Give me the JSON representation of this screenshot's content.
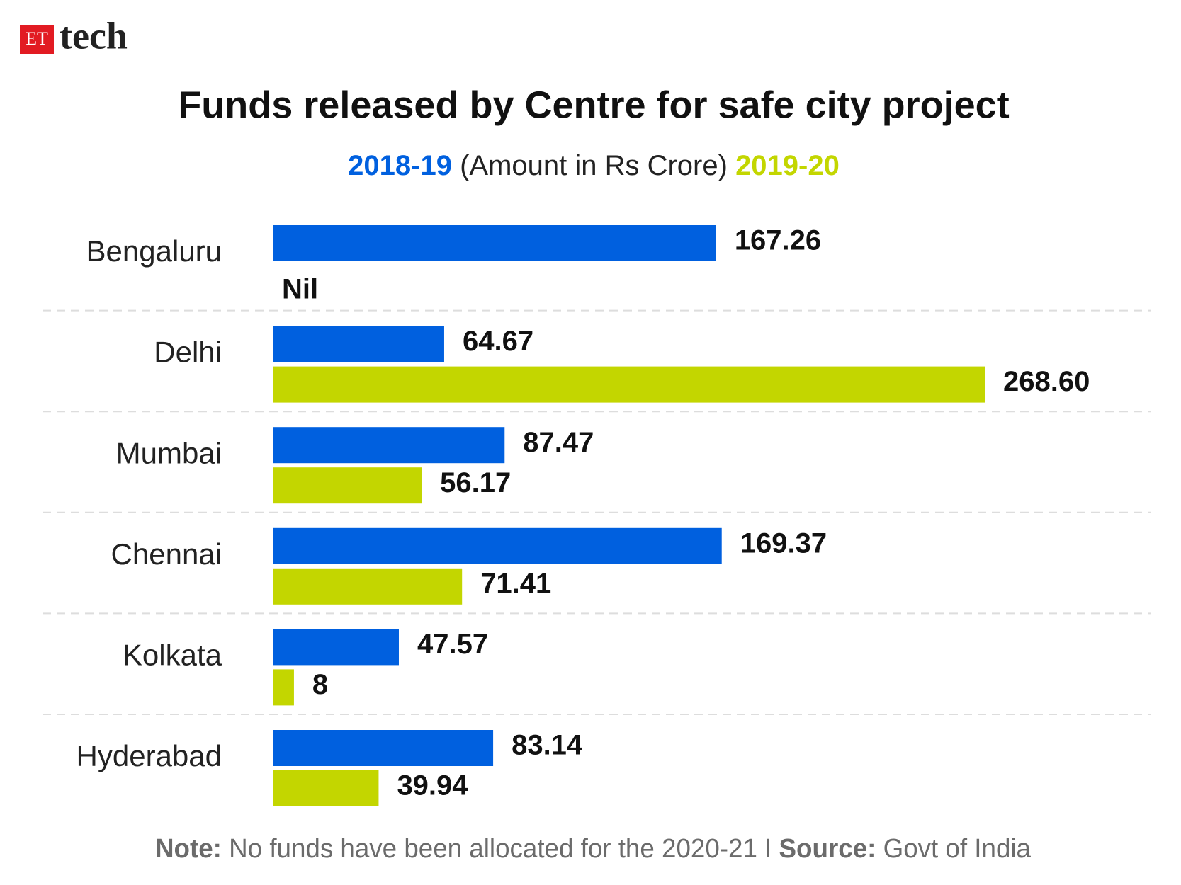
{
  "logo": {
    "badge": "ET",
    "text": "tech"
  },
  "chart_data": {
    "type": "bar",
    "orientation": "horizontal",
    "title": "Funds released by Centre for safe city project",
    "subtitle": "(Amount in Rs Crore)",
    "categories": [
      "Bengaluru",
      "Delhi",
      "Mumbai",
      "Chennai",
      "Kolkata",
      "Hyderabad"
    ],
    "series": [
      {
        "name": "2018-19",
        "color": "#0060df",
        "values": [
          167.26,
          64.67,
          87.47,
          169.37,
          47.57,
          83.14
        ]
      },
      {
        "name": "2019-20",
        "color": "#c3d600",
        "values": [
          null,
          268.6,
          56.17,
          71.41,
          8,
          39.94
        ],
        "value_labels": [
          "Nil",
          "268.60",
          "56.17",
          "71.41",
          "8",
          "39.94"
        ]
      }
    ],
    "note": {
      "label": "Note:",
      "text": "No funds have been allocated for the 2020-21"
    },
    "separator": "I",
    "source": {
      "label": "Source:",
      "text": "Govt of India"
    }
  }
}
